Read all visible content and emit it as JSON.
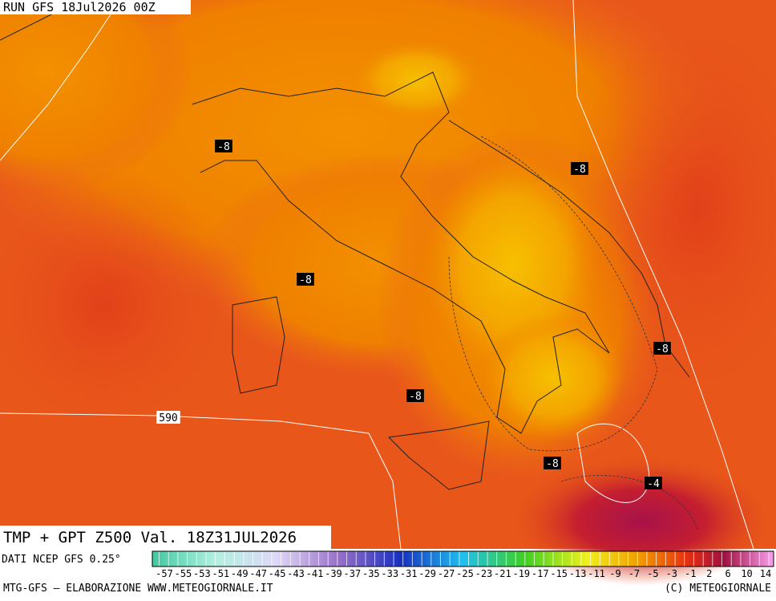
{
  "header": {
    "run": "RUN GFS 18Jul2026 00Z"
  },
  "map": {
    "title": "TMP + GPT Z500 Val. 18Z31JUL2026",
    "contour_labels": [
      "-8",
      "-8",
      "-8",
      "-8",
      "-8",
      "-8",
      "-4",
      "590"
    ]
  },
  "colorbar": {
    "source": "DATI NCEP GFS 0.25°",
    "labels": [
      "-57",
      "-55",
      "-53",
      "-51",
      "-49",
      "-47",
      "-45",
      "-43",
      "-41",
      "-39",
      "-37",
      "-35",
      "-33",
      "-31",
      "-29",
      "-27",
      "-25",
      "-23",
      "-21",
      "-19",
      "-17",
      "-15",
      "-13",
      "-11",
      "-9",
      "-7",
      "-5",
      "-3",
      "-1",
      "2",
      "6",
      "10",
      "14"
    ]
  },
  "footer": {
    "left": "MTG-GFS — ELABORAZIONE WWW.METEOGIORNALE.IT",
    "right": "(C) METEOGIORNALE"
  }
}
